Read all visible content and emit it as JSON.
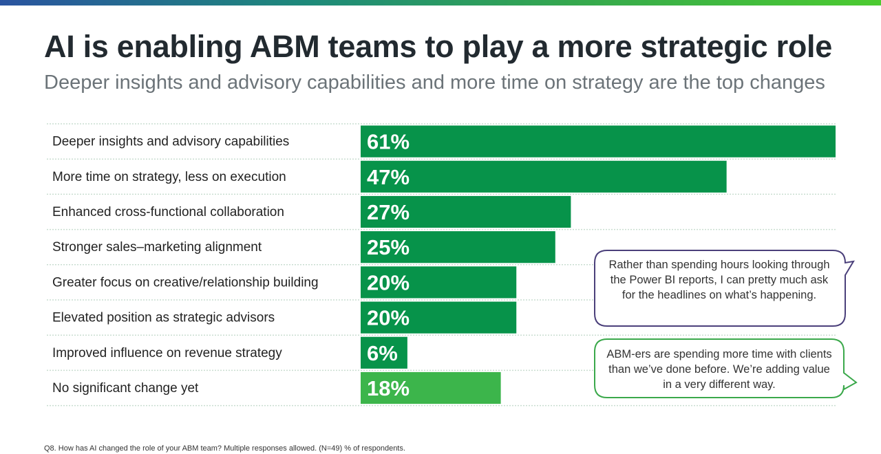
{
  "title": "AI is enabling ABM teams to play a more strategic role",
  "subtitle": "Deeper insights and advisory capabilities and more time on strategy are the top changes",
  "footnote": "Q8. How has AI changed the role of your ABM team? Multiple responses allowed. (N=49) % of respondents.",
  "colors": {
    "bar": "#07934a",
    "bar_highlight": "#3cb54b",
    "callout_1_border": "#4a3f7a",
    "callout_2_border": "#3aa84a"
  },
  "callouts": [
    {
      "text": "Rather than spending hours looking through the Power BI reports, I can pretty much ask for the headlines on what’s happening."
    },
    {
      "text": "ABM-ers are spending more time with clients than we’ve done before. We’re adding value in a very different way."
    }
  ],
  "chart_data": {
    "type": "bar",
    "orientation": "horizontal",
    "categories": [
      "Deeper insights and advisory capabilities",
      "More time on strategy, less on execution",
      "Enhanced cross-functional collaboration",
      "Stronger sales–marketing alignment",
      "Greater focus on creative/relationship building",
      "Elevated position as strategic advisors",
      "Improved influence on revenue strategy",
      "No significant change yet"
    ],
    "values": [
      61,
      47,
      27,
      25,
      20,
      20,
      6,
      18
    ],
    "data_labels": [
      "61%",
      "47%",
      "27%",
      "25%",
      "20%",
      "20%",
      "6%",
      "18%"
    ],
    "xlim": [
      0,
      61
    ],
    "grid": false,
    "legend": "none"
  }
}
